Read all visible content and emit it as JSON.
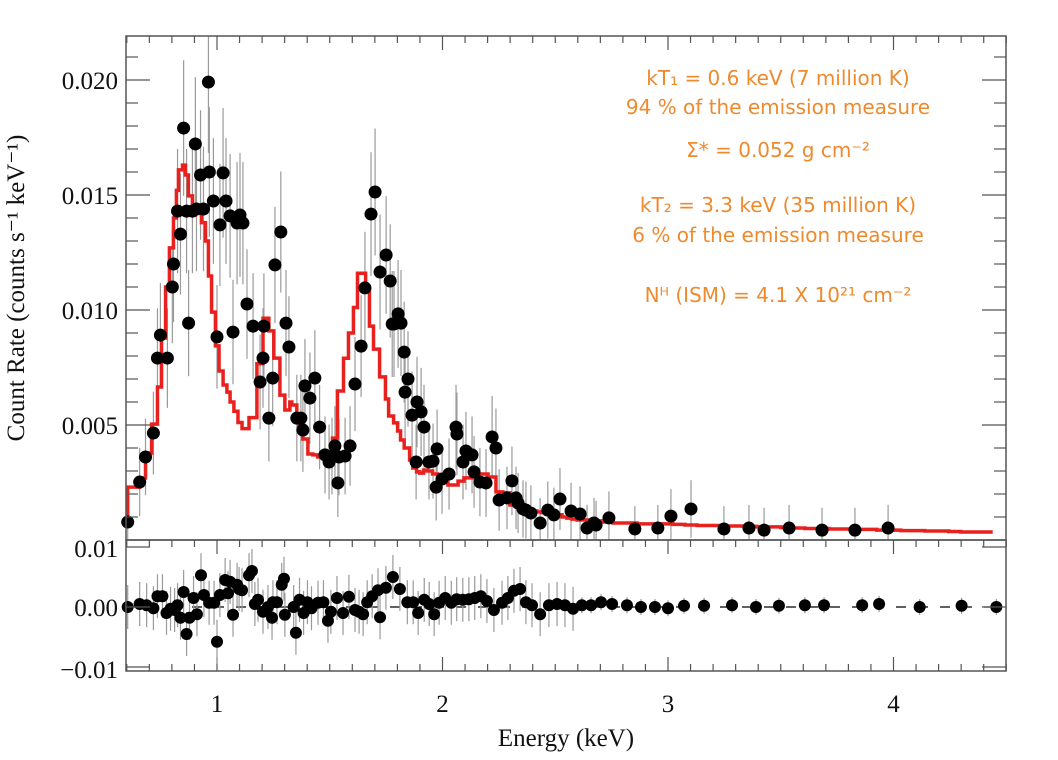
{
  "chart_data": [
    {
      "type": "scatter",
      "panel": "spectrum",
      "title": "",
      "xlabel": "",
      "ylabel": "Count Rate (counts s⁻¹ keV⁻¹)",
      "xlim": [
        0.6,
        4.5
      ],
      "ylim": [
        0.0,
        0.022
      ],
      "y_ticks": [
        0.005,
        0.01,
        0.015,
        0.02
      ],
      "y_tick_labels": [
        "0.005",
        "0.010",
        "0.015",
        "0.020"
      ],
      "grid": false,
      "series": [
        {
          "name": "Observed data",
          "style": "points with error bars",
          "color": "#000000",
          "x": [
            0.604,
            0.657,
            0.683,
            0.718,
            0.736,
            0.78,
            0.749,
            0.802,
            0.807,
            0.825,
            0.838,
            0.852,
            0.865,
            0.874,
            0.891,
            0.909,
            0.904,
            0.962,
            0.927,
            0.94,
            0.966,
            0.984,
            1.0,
            1.013,
            1.027,
            1.04,
            1.058,
            1.071,
            1.089,
            1.102,
            1.115,
            1.133,
            1.16,
            1.191,
            1.208,
            1.204,
            1.23,
            1.247,
            1.257,
            1.283,
            1.306,
            1.319,
            1.354,
            1.372,
            1.381,
            1.39,
            1.412,
            1.434,
            1.455,
            1.479,
            1.497,
            1.51,
            1.523,
            1.536,
            1.541,
            1.568,
            1.59,
            1.612,
            1.639,
            1.656,
            1.683,
            1.701,
            1.723,
            1.75,
            1.768,
            1.777,
            1.785,
            1.803,
            1.816,
            1.83,
            1.834,
            1.847,
            1.865,
            1.883,
            1.887,
            1.905,
            1.918,
            1.94,
            1.958,
            1.976,
            1.972,
            1.998,
            2.029,
            2.064,
            2.06,
            2.091,
            2.104,
            2.131,
            2.14,
            2.166,
            2.193,
            2.22,
            2.237,
            2.251,
            2.286,
            2.308,
            2.326,
            2.335,
            2.357,
            2.37,
            2.392,
            2.433,
            2.467,
            2.494,
            2.521,
            2.57,
            2.61,
            2.641,
            2.672,
            2.681,
            2.738,
            2.853,
            2.955,
            3.013,
            3.102,
            3.248,
            3.359,
            3.426,
            3.537,
            3.683,
            3.829,
            3.976
          ],
          "y": [
            0.00078,
            0.00252,
            0.00361,
            0.00465,
            0.00791,
            0.00791,
            0.00891,
            0.011,
            0.012,
            0.0143,
            0.0133,
            0.01791,
            0.0143,
            0.00943,
            0.0143,
            0.01439,
            0.01722,
            0.01991,
            0.01587,
            0.01439,
            0.016,
            0.01474,
            0.00883,
            0.0137,
            0.01596,
            0.01474,
            0.01409,
            0.00904,
            0.01378,
            0.01413,
            0.01378,
            0.01026,
            0.0093,
            0.00687,
            0.0093,
            0.00791,
            0.0053,
            0.00704,
            0.01196,
            0.01339,
            0.00943,
            0.00839,
            0.0053,
            0.0053,
            0.00478,
            0.0067,
            0.00617,
            0.00704,
            0.00491,
            0.0037,
            0.00339,
            0.00365,
            0.00409,
            0.00248,
            0.00361,
            0.00365,
            0.00409,
            0.00678,
            0.00843,
            0.01096,
            0.01417,
            0.01513,
            0.01165,
            0.01239,
            0.01126,
            0.00939,
            0.00939,
            0.00983,
            0.00943,
            0.00817,
            0.00643,
            0.007,
            0.00543,
            0.00339,
            0.006,
            0.00557,
            0.00491,
            0.00339,
            0.00343,
            0.00396,
            0.0023,
            0.00265,
            0.00287,
            0.00461,
            0.00491,
            0.00339,
            0.00387,
            0.0037,
            0.00296,
            0.00252,
            0.00248,
            0.00448,
            0.004,
            0.00174,
            0.00183,
            0.00257,
            0.00183,
            0.00161,
            0.00135,
            0.0013,
            0.00117,
            0.00074,
            0.0013,
            0.00109,
            0.00178,
            0.00126,
            0.00113,
            0.00052,
            0.00074,
            0.00065,
            0.00096,
            0.00048,
            0.00052,
            0.00104,
            0.00135,
            0.00048,
            0.00052,
            0.00043,
            0.00052,
            0.00043,
            0.00043,
            0.00052
          ]
        },
        {
          "name": "Two-temperature model",
          "style": "step line",
          "color": "#e8201e",
          "x": [
            0.6,
            0.604,
            0.657,
            0.683,
            0.71,
            0.736,
            0.754,
            0.772,
            0.789,
            0.807,
            0.82,
            0.829,
            0.847,
            0.86,
            0.873,
            0.891,
            0.904,
            0.918,
            0.931,
            0.949,
            0.962,
            0.976,
            0.993,
            1.009,
            1.027,
            1.044,
            1.058,
            1.075,
            1.093,
            1.111,
            1.142,
            1.177,
            1.204,
            1.23,
            1.252,
            1.279,
            1.301,
            1.323,
            1.332,
            1.354,
            1.363,
            1.381,
            1.403,
            1.425,
            1.447,
            1.468,
            1.486,
            1.512,
            1.534,
            1.561,
            1.583,
            1.605,
            1.623,
            1.646,
            1.659,
            1.676,
            1.694,
            1.721,
            1.747,
            1.761,
            1.783,
            1.801,
            1.814,
            1.83,
            1.854,
            1.868,
            1.885,
            1.899,
            1.916,
            1.932,
            1.956,
            1.979,
            2.002,
            2.024,
            2.046,
            2.069,
            2.095,
            2.131,
            2.166,
            2.202,
            2.237,
            2.268,
            2.299,
            2.33,
            2.352,
            2.375,
            2.397,
            2.419,
            2.441,
            2.464,
            2.486,
            2.508,
            2.53,
            2.552,
            2.574,
            2.597,
            2.65,
            2.703,
            2.756,
            2.81,
            2.863,
            2.916,
            2.969,
            3.022,
            3.075,
            3.129,
            3.182,
            3.235,
            3.288,
            3.341,
            3.394,
            3.448,
            3.501,
            3.554,
            3.607,
            3.66,
            3.713,
            3.767,
            3.82,
            3.873,
            3.926,
            3.979,
            4.032,
            4.085,
            4.138,
            4.192,
            4.245,
            4.298,
            4.351,
            4.404,
            4.44
          ],
          "y": [
            0.0007,
            0.0023,
            0.0027,
            0.00378,
            0.00504,
            0.00665,
            0.00878,
            0.011,
            0.0127,
            0.014,
            0.0152,
            0.01609,
            0.0163,
            0.01587,
            0.01496,
            0.01413,
            0.01435,
            0.0142,
            0.0138,
            0.013,
            0.01148,
            0.00991,
            0.00844,
            0.00735,
            0.00674,
            0.00643,
            0.006,
            0.0056,
            0.00511,
            0.00484,
            0.00532,
            0.00767,
            0.00964,
            0.00909,
            0.00791,
            0.0063,
            0.00565,
            0.006,
            0.00587,
            0.00543,
            0.005,
            0.00439,
            0.00374,
            0.0037,
            0.00361,
            0.00361,
            0.00379,
            0.00443,
            0.00648,
            0.0079,
            0.009,
            0.01011,
            0.0116,
            0.0116,
            0.01087,
            0.0093,
            0.0083,
            0.00709,
            0.00613,
            0.00539,
            0.00509,
            0.00474,
            0.00435,
            0.004,
            0.00348,
            0.00313,
            0.00296,
            0.00291,
            0.00304,
            0.003,
            0.00287,
            0.0027,
            0.00252,
            0.00239,
            0.00239,
            0.00256,
            0.0027,
            0.00287,
            0.00287,
            0.00274,
            0.00209,
            0.00205,
            0.00152,
            0.00143,
            0.00139,
            0.0013,
            0.00126,
            0.00122,
            0.00119,
            0.00116,
            0.00113,
            0.0011,
            0.001,
            0.00095,
            0.00091,
            0.00087,
            0.00083,
            0.00078,
            0.00074,
            0.00074,
            0.0007,
            0.0007,
            0.0007,
            0.00068,
            0.00065,
            0.00063,
            0.00063,
            0.00061,
            0.00061,
            0.00059,
            0.00057,
            0.00057,
            0.00054,
            0.00052,
            0.0005,
            0.0005,
            0.00048,
            0.00048,
            0.00046,
            0.00046,
            0.00043,
            0.00043,
            0.00041,
            0.00041,
            0.00039,
            0.00039,
            0.00037,
            0.00035,
            0.00035,
            0.00035,
            0.00035
          ]
        }
      ],
      "annotations": [
        {
          "id": "kt1",
          "text": "kT₁ = 0.6 keV (7 million K)"
        },
        {
          "id": "em1",
          "text": "94 % of the emission measure"
        },
        {
          "id": "sigma",
          "text": "Σ* = 0.052 g cm⁻²"
        },
        {
          "id": "kt2",
          "text": "kT₂ = 3.3 keV (35 million K)"
        },
        {
          "id": "em2",
          "text": "6 % of the emission measure"
        },
        {
          "id": "nh",
          "text": "Nᴴ (ISM) = 4.1 X 10²¹ cm⁻²"
        }
      ],
      "annotation_color": "#ee8a2e",
      "legend": "none"
    },
    {
      "type": "scatter",
      "panel": "residuals",
      "xlabel": "Energy (keV)",
      "ylabel": "",
      "xlim": [
        0.6,
        4.5
      ],
      "ylim": [
        -0.011,
        0.011
      ],
      "x_ticks": [
        1,
        2,
        3,
        4
      ],
      "x_tick_labels": [
        "1",
        "2",
        "3",
        "4"
      ],
      "y_ticks": [
        -0.01,
        0.0,
        0.01
      ],
      "y_tick_labels": [
        "−0.01",
        "0.00",
        "0.01"
      ],
      "reference_line": {
        "y": 0.0,
        "style": "dashed"
      },
      "series": [
        {
          "name": "Residuals",
          "color": "#000000",
          "x": [
            0.604,
            0.657,
            0.688,
            0.718,
            0.736,
            0.758,
            0.776,
            0.794,
            0.812,
            0.825,
            0.838,
            0.852,
            0.865,
            0.878,
            0.896,
            0.911,
            0.929,
            0.942,
            0.965,
            0.987,
            1.0,
            1.013,
            1.036,
            1.049,
            1.058,
            1.071,
            1.089,
            1.098,
            1.111,
            1.142,
            1.155,
            1.168,
            1.182,
            1.204,
            1.226,
            1.244,
            1.248,
            1.266,
            1.287,
            1.297,
            1.301,
            1.34,
            1.35,
            1.366,
            1.384,
            1.401,
            1.419,
            1.448,
            1.472,
            1.492,
            1.505,
            1.532,
            1.559,
            1.585,
            1.612,
            1.63,
            1.648,
            1.666,
            1.688,
            1.714,
            1.723,
            1.749,
            1.78,
            1.811,
            1.844,
            1.87,
            1.892,
            1.919,
            1.941,
            1.963,
            1.985,
            2.012,
            2.039,
            2.063,
            2.09,
            2.117,
            2.143,
            2.17,
            2.197,
            2.228,
            2.264,
            2.29,
            2.317,
            2.344,
            2.37,
            2.397,
            2.433,
            2.472,
            2.508,
            2.543,
            2.579,
            2.618,
            2.659,
            2.703,
            2.752,
            2.818,
            2.88,
            2.942,
            3.0,
            3.071,
            3.16,
            3.284,
            3.39,
            3.492,
            3.607,
            3.692,
            3.861,
            3.936,
            4.116,
            4.302,
            4.456
          ],
          "y": [
            0.0,
            0.0005,
            0.0003,
            -0.0002,
            0.0018,
            0.0018,
            -0.001,
            -0.0003,
            -0.0005,
            0.0003,
            -0.0018,
            0.0025,
            -0.0045,
            -0.0018,
            0.0015,
            -0.0012,
            0.0053,
            0.002,
            0.0007,
            0.0007,
            -0.0058,
            0.002,
            0.0045,
            0.0023,
            0.0042,
            -0.0013,
            0.0037,
            0.003,
            0.0028,
            0.0053,
            0.006,
            0.0005,
            0.0012,
            -0.0008,
            0.0,
            -0.0018,
            0.0008,
            0.0008,
            0.0037,
            0.0047,
            -0.0013,
            0.0,
            -0.0043,
            0.0012,
            -0.001,
            0.0008,
            -0.0002,
            0.0007,
            0.0008,
            -0.0023,
            -0.0008,
            0.0015,
            -0.001,
            0.0017,
            -0.0005,
            -0.0008,
            -0.0012,
            0.0008,
            0.0018,
            0.0028,
            -0.0017,
            0.0032,
            0.005,
            0.003,
            0.0008,
            0.0008,
            -0.001,
            0.0012,
            0.0005,
            -0.0012,
            0.0007,
            0.0015,
            0.0007,
            0.0013,
            0.0012,
            0.0013,
            0.0015,
            0.0018,
            0.001,
            -0.0005,
            0.0007,
            0.0015,
            0.0027,
            0.003,
            0.0008,
            0.0003,
            -0.0012,
            0.0003,
            0.0005,
            0.0003,
            -0.0003,
            0.0003,
            0.0003,
            0.0008,
            0.0005,
            0.0003,
            0.0,
            0.0,
            -0.0002,
            0.0002,
            0.0002,
            0.0003,
            0.0,
            0.0002,
            0.0003,
            0.0003,
            0.0003,
            0.0005,
            0.0,
            0.0002,
            0.0
          ]
        }
      ]
    }
  ]
}
